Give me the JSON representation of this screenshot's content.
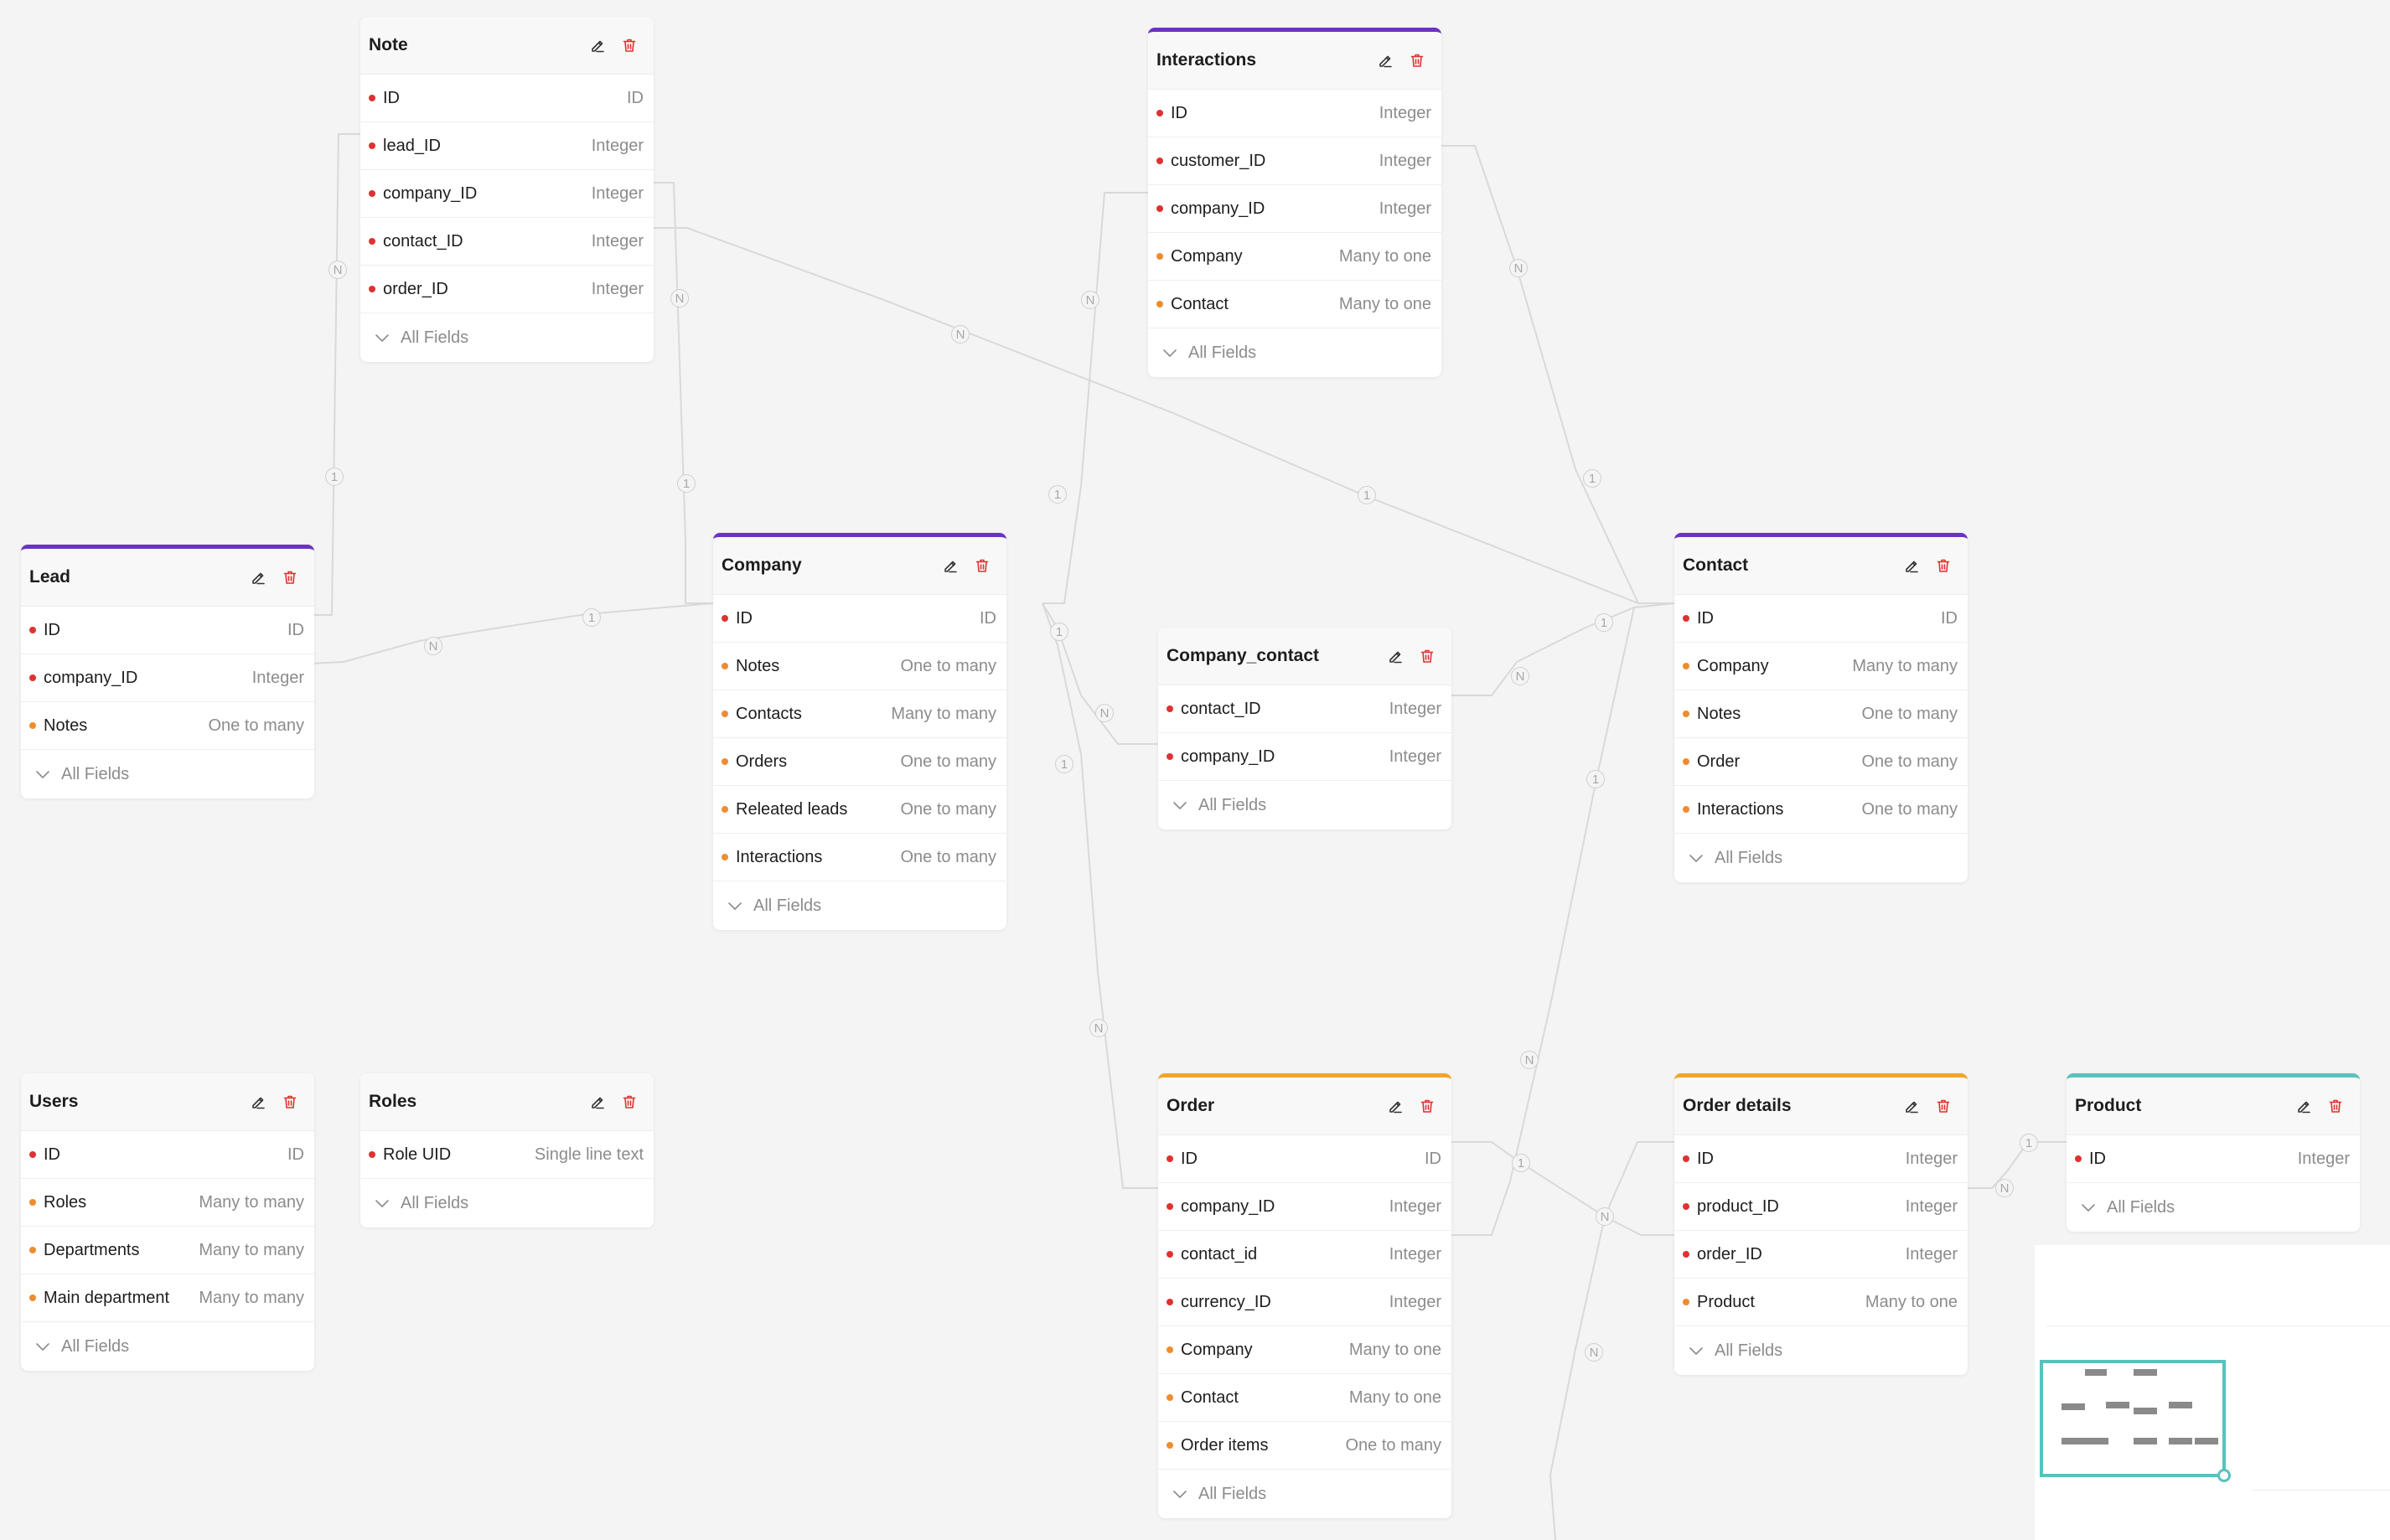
{
  "tables": [
    {
      "id": "note",
      "title": "Note",
      "accent": "",
      "fields": [
        {
          "name": "ID",
          "type": "ID",
          "kind": "key"
        },
        {
          "name": "lead_ID",
          "type": "Integer",
          "kind": "key"
        },
        {
          "name": "company_ID",
          "type": "Integer",
          "kind": "key"
        },
        {
          "name": "contact_ID",
          "type": "Integer",
          "kind": "key"
        },
        {
          "name": "order_ID",
          "type": "Integer",
          "kind": "key"
        }
      ],
      "all_fields_label": "All Fields"
    },
    {
      "id": "interactions",
      "title": "Interactions",
      "accent": "#6a32c8",
      "fields": [
        {
          "name": "ID",
          "type": "Integer",
          "kind": "key"
        },
        {
          "name": "customer_ID",
          "type": "Integer",
          "kind": "key"
        },
        {
          "name": "company_ID",
          "type": "Integer",
          "kind": "key"
        },
        {
          "name": "Company",
          "type": "Many to one",
          "kind": "rel"
        },
        {
          "name": "Contact",
          "type": "Many to one",
          "kind": "rel"
        }
      ],
      "all_fields_label": "All Fields"
    },
    {
      "id": "lead",
      "title": "Lead",
      "accent": "#6a32c8",
      "fields": [
        {
          "name": "ID",
          "type": "ID",
          "kind": "key"
        },
        {
          "name": "company_ID",
          "type": "Integer",
          "kind": "key"
        },
        {
          "name": "Notes",
          "type": "One to many",
          "kind": "rel"
        }
      ],
      "all_fields_label": "All Fields"
    },
    {
      "id": "company",
      "title": "Company",
      "accent": "#6a32c8",
      "fields": [
        {
          "name": "ID",
          "type": "ID",
          "kind": "key"
        },
        {
          "name": "Notes",
          "type": "One to many",
          "kind": "rel"
        },
        {
          "name": "Contacts",
          "type": "Many to many",
          "kind": "rel"
        },
        {
          "name": "Orders",
          "type": "One to many",
          "kind": "rel"
        },
        {
          "name": "Releated leads",
          "type": "One to many",
          "kind": "rel"
        },
        {
          "name": "Interactions",
          "type": "One to many",
          "kind": "rel"
        }
      ],
      "all_fields_label": "All Fields"
    },
    {
      "id": "company_contact",
      "title": "Company_contact",
      "accent": "",
      "fields": [
        {
          "name": "contact_ID",
          "type": "Integer",
          "kind": "key"
        },
        {
          "name": "company_ID",
          "type": "Integer",
          "kind": "key"
        }
      ],
      "all_fields_label": "All Fields"
    },
    {
      "id": "contact",
      "title": "Contact",
      "accent": "#6a32c8",
      "fields": [
        {
          "name": "ID",
          "type": "ID",
          "kind": "key"
        },
        {
          "name": "Company",
          "type": "Many to many",
          "kind": "rel"
        },
        {
          "name": "Notes",
          "type": "One to many",
          "kind": "rel"
        },
        {
          "name": "Order",
          "type": "One to many",
          "kind": "rel"
        },
        {
          "name": "Interactions",
          "type": "One to many",
          "kind": "rel"
        }
      ],
      "all_fields_label": "All Fields"
    },
    {
      "id": "users",
      "title": "Users",
      "accent": "",
      "fields": [
        {
          "name": "ID",
          "type": "ID",
          "kind": "key"
        },
        {
          "name": "Roles",
          "type": "Many to many",
          "kind": "rel"
        },
        {
          "name": "Departments",
          "type": "Many to many",
          "kind": "rel"
        },
        {
          "name": "Main department",
          "type": "Many to many",
          "kind": "rel"
        }
      ],
      "all_fields_label": "All Fields"
    },
    {
      "id": "roles",
      "title": "Roles",
      "accent": "",
      "fields": [
        {
          "name": "Role UID",
          "type": "Single line text",
          "kind": "key"
        }
      ],
      "all_fields_label": "All Fields"
    },
    {
      "id": "order",
      "title": "Order",
      "accent": "#f2a52a",
      "fields": [
        {
          "name": "ID",
          "type": "ID",
          "kind": "key"
        },
        {
          "name": "company_ID",
          "type": "Integer",
          "kind": "key"
        },
        {
          "name": "contact_id",
          "type": "Integer",
          "kind": "key"
        },
        {
          "name": "currency_ID",
          "type": "Integer",
          "kind": "key"
        },
        {
          "name": "Company",
          "type": "Many to one",
          "kind": "rel"
        },
        {
          "name": "Contact",
          "type": "Many to one",
          "kind": "rel"
        },
        {
          "name": "Order items",
          "type": "One to many",
          "kind": "rel"
        }
      ],
      "all_fields_label": "All Fields"
    },
    {
      "id": "order_details",
      "title": "Order details",
      "accent": "#f2a52a",
      "fields": [
        {
          "name": "ID",
          "type": "Integer",
          "kind": "key"
        },
        {
          "name": "product_ID",
          "type": "Integer",
          "kind": "key"
        },
        {
          "name": "order_ID",
          "type": "Integer",
          "kind": "key"
        },
        {
          "name": "Product",
          "type": "Many to one",
          "kind": "rel"
        }
      ],
      "all_fields_label": "All Fields"
    },
    {
      "id": "product",
      "title": "Product",
      "accent": "#59c2bc",
      "fields": [
        {
          "name": "ID",
          "type": "Integer",
          "kind": "key"
        }
      ],
      "all_fields_label": "All Fields"
    }
  ],
  "relation_labels": {
    "one": "1",
    "many": "N"
  },
  "icons": {
    "edit": "edit-icon",
    "delete": "trash-icon",
    "expand": "chevron-down-icon"
  },
  "colors": {
    "key_dot": "#e03131",
    "relation_dot": "#f08c2e",
    "delete": "#e03131",
    "minimap_viewport": "#59c2bc"
  }
}
